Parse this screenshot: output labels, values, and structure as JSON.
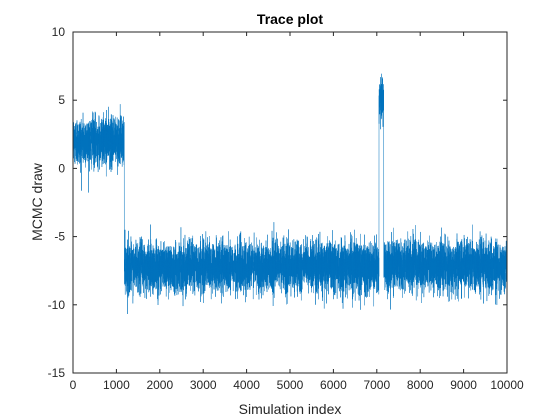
{
  "chart_data": {
    "type": "line",
    "title": "Trace plot",
    "xlabel": "Simulation index",
    "ylabel": "MCMC draw",
    "xlim": [
      0,
      10000
    ],
    "ylim": [
      -15,
      10
    ],
    "xticks": [
      0,
      1000,
      2000,
      3000,
      4000,
      5000,
      6000,
      7000,
      8000,
      9000,
      10000
    ],
    "yticks": [
      -15,
      -10,
      -5,
      0,
      5,
      10
    ],
    "grid": false,
    "legend": false,
    "series_color": "#0072BD",
    "n_draws": 10000,
    "segments": [
      {
        "start": 1,
        "end": 1180,
        "mean": 2.0,
        "sd": 0.9
      },
      {
        "start": 1181,
        "end": 7050,
        "mean": -7.2,
        "sd": 0.9
      },
      {
        "start": 7051,
        "end": 7160,
        "mean": 5.0,
        "sd": 0.8
      },
      {
        "start": 7161,
        "end": 10000,
        "mean": -7.1,
        "sd": 0.9
      }
    ]
  }
}
